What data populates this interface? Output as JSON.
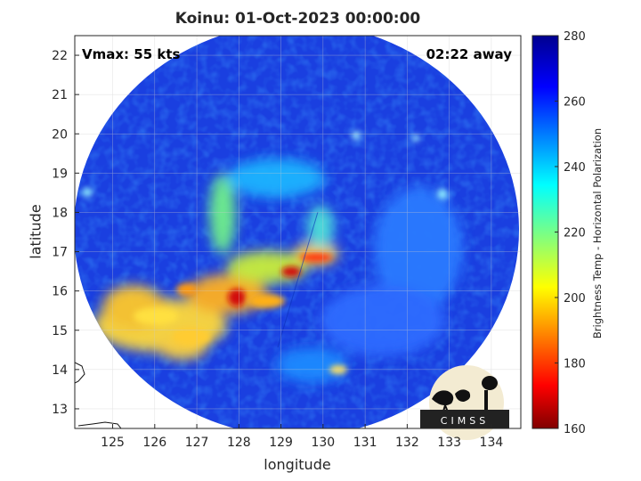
{
  "title": "Koinu: 01-Oct-2023 00:00:00",
  "vmax_label": "Vmax: 55 kts",
  "time_away": "02:22 away",
  "x_axis": {
    "label": "longitude",
    "ticks": [
      125,
      126,
      127,
      128,
      129,
      130,
      131,
      132,
      133,
      134
    ],
    "range": [
      124.1,
      134.7
    ]
  },
  "y_axis": {
    "label": "latitude",
    "ticks": [
      13,
      14,
      15,
      16,
      17,
      18,
      19,
      20,
      21,
      22
    ],
    "range": [
      12.5,
      22.5
    ]
  },
  "colorbar": {
    "label": "Brightness Temp - Horizontal Polarization",
    "ticks": [
      160,
      180,
      200,
      220,
      240,
      260,
      280
    ],
    "range": [
      160,
      280
    ],
    "colormap": "jet"
  },
  "logo": {
    "text": "CIMSS"
  },
  "grid": true,
  "colors": {
    "scene_background": "#1a3fe0",
    "outside_swath": "#ffffff"
  }
}
